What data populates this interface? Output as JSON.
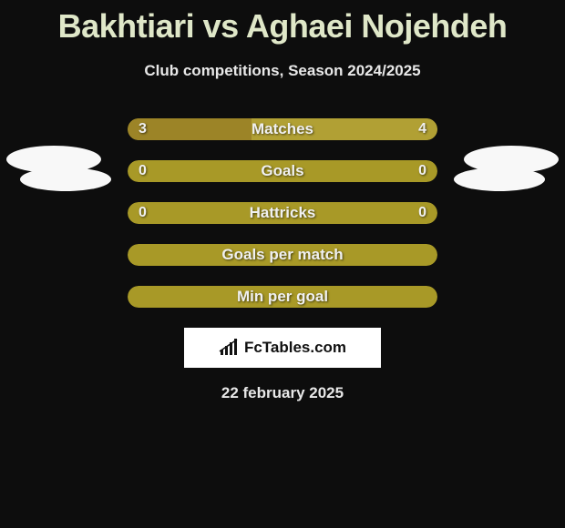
{
  "title": "Bakhtiari vs Aghaei Nojehdeh",
  "subtitle": "Club competitions, Season 2024/2025",
  "date": "22 february 2025",
  "brand": "FcTables.com",
  "colors": {
    "background": "#0d0d0d",
    "title": "#dfe7c8",
    "text": "#e8e8e8",
    "bar_left": "#a08a2a",
    "bar_right": "#b09a33",
    "bar_default": "#a89927",
    "bar_label": "#f0f0f0",
    "brand_bg": "#ffffff",
    "logo_bg": "#f8f8f8"
  },
  "stats": [
    {
      "label": "Matches",
      "left_value": "3",
      "right_value": "4",
      "left_pct": 40,
      "right_pct": 60,
      "left_color": "#9c8427",
      "right_color": "#b1a034",
      "show_values": true
    },
    {
      "label": "Goals",
      "left_value": "0",
      "right_value": "0",
      "left_pct": 0,
      "right_pct": 0,
      "left_color": "#a89927",
      "right_color": "#a89927",
      "show_values": true
    },
    {
      "label": "Hattricks",
      "left_value": "0",
      "right_value": "0",
      "left_pct": 0,
      "right_pct": 0,
      "left_color": "#a89927",
      "right_color": "#a89927",
      "show_values": true
    },
    {
      "label": "Goals per match",
      "left_value": "",
      "right_value": "",
      "left_pct": 0,
      "right_pct": 0,
      "left_color": "#a89927",
      "right_color": "#a89927",
      "show_values": false
    },
    {
      "label": "Min per goal",
      "left_value": "",
      "right_value": "",
      "left_pct": 0,
      "right_pct": 0,
      "left_color": "#a89927",
      "right_color": "#a89927",
      "show_values": false
    }
  ]
}
